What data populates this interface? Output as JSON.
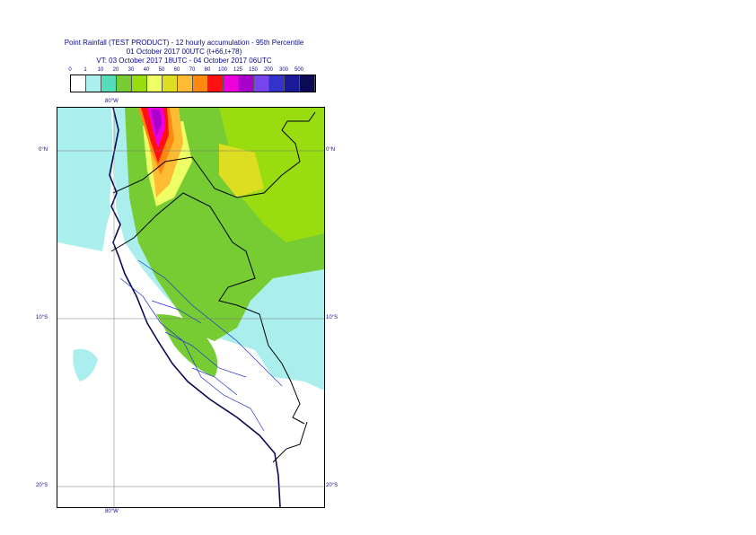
{
  "header": {
    "title_line1": "Point Rainfall (TEST PRODUCT) - 12 hourly accumulation - 95th Percentile",
    "title_line2": "01 October 2017 00UTC (t+66,t+78)",
    "title_line3": "VT: 03 October 2017 18UTC - 04 October 2017 06UTC"
  },
  "legend": {
    "labels": [
      "0",
      "1",
      "10",
      "20",
      "30",
      "40",
      "50",
      "60",
      "70",
      "80",
      "100",
      "125",
      "150",
      "200",
      "300",
      "500"
    ],
    "colors": [
      "#ffffff",
      "#aaeeee",
      "#55ddbb",
      "#77cc33",
      "#99dd11",
      "#eeff66",
      "#dddd22",
      "#ffbb33",
      "#ff8811",
      "#ff1111",
      "#ee00dd",
      "#aa00cc",
      "#7744ee",
      "#3333cc",
      "#1a1a99",
      "#0a0a55"
    ]
  },
  "map": {
    "longitude_labels": {
      "top": "80°W",
      "bottom": "80°W"
    },
    "latitude_labels": {
      "lat0_left": "0°N",
      "lat0_right": "0°N",
      "lat10_left": "10°S",
      "lat10_right": "10°S",
      "lat20_left": "20°S",
      "lat20_right": "20°S"
    }
  }
}
